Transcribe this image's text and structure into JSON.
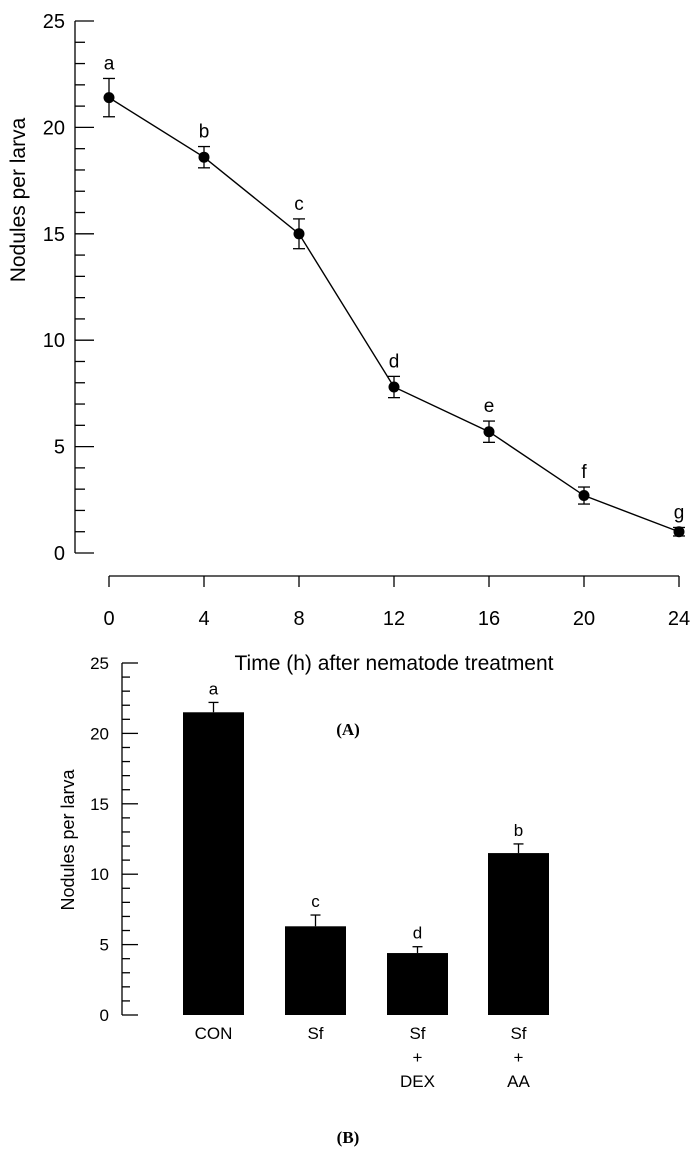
{
  "chart_data": [
    {
      "type": "line",
      "panel_label": "(A)",
      "xlabel": "Time (h) after nematode treatment",
      "ylabel": "Nodules per larva",
      "xlim": [
        0,
        24
      ],
      "ylim": [
        0,
        25
      ],
      "x_ticks": [
        0,
        4,
        8,
        12,
        16,
        20,
        24
      ],
      "y_ticks": [
        0,
        5,
        10,
        15,
        20,
        25
      ],
      "grid": false,
      "x": [
        0,
        4,
        8,
        12,
        16,
        20,
        24
      ],
      "values": [
        21.4,
        18.6,
        15.0,
        7.8,
        5.7,
        2.7,
        1.0
      ],
      "errors": [
        0.9,
        0.5,
        0.7,
        0.5,
        0.5,
        0.4,
        0.2
      ],
      "annotations": [
        "a",
        "b",
        "c",
        "d",
        "e",
        "f",
        "g"
      ],
      "color": "#000000"
    },
    {
      "type": "bar",
      "panel_label": "(B)",
      "ylabel": "Nodules per larva",
      "ylim": [
        0,
        25
      ],
      "y_ticks": [
        0,
        5,
        10,
        15,
        20,
        25
      ],
      "grid": false,
      "categories": [
        [
          "CON"
        ],
        [
          "Sf"
        ],
        [
          "Sf",
          "+",
          "DEX"
        ],
        [
          "Sf",
          "+",
          "AA"
        ]
      ],
      "values": [
        21.5,
        6.3,
        4.4,
        11.5
      ],
      "errors": [
        0.7,
        0.8,
        0.45,
        0.65
      ],
      "annotations": [
        "a",
        "c",
        "d",
        "b"
      ],
      "color": "#000000"
    }
  ]
}
